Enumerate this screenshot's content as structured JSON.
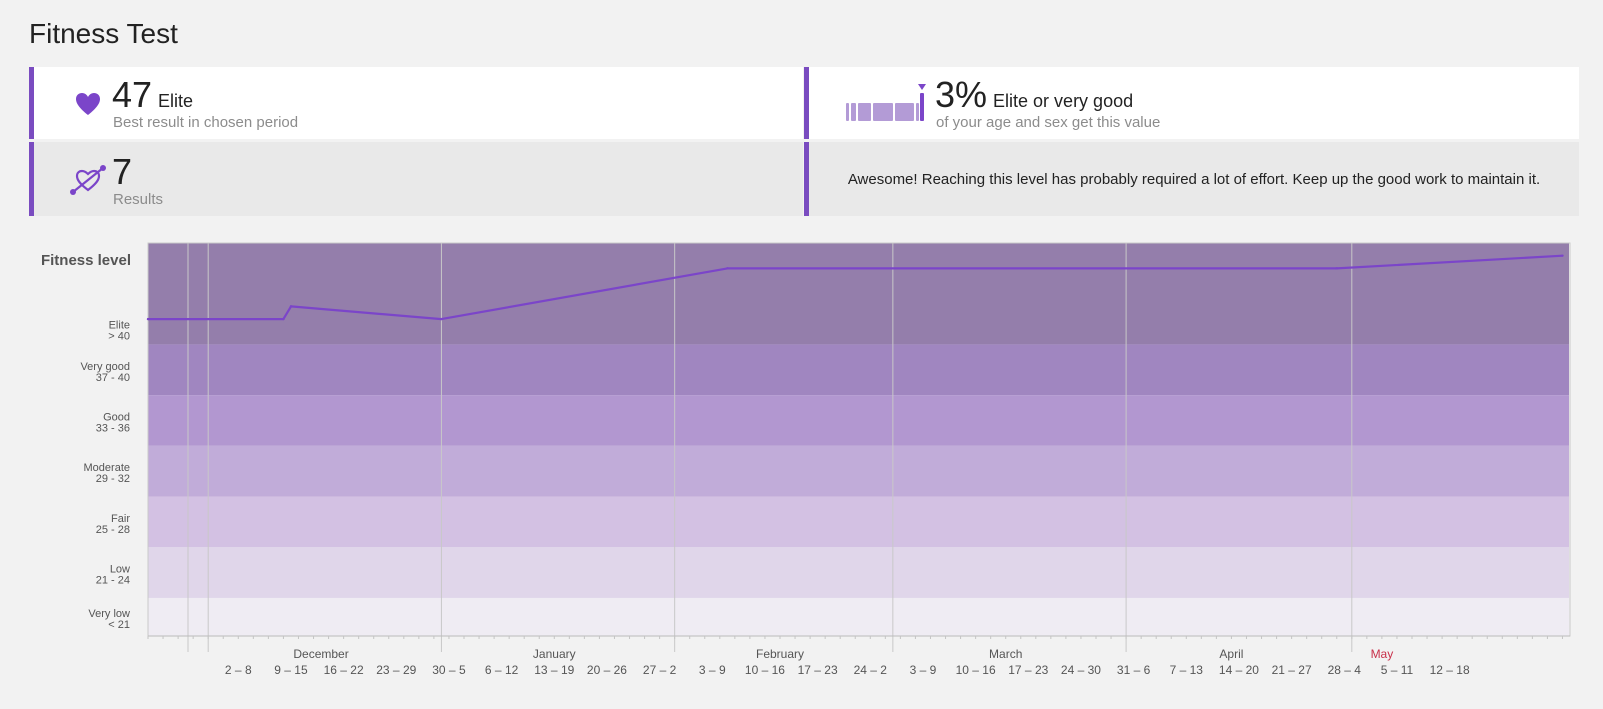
{
  "page_title": "Fitness Test",
  "cards": {
    "best": {
      "value": "47",
      "level": "Elite",
      "caption": "Best result in chosen period"
    },
    "percentile": {
      "value": "3%",
      "level": "Elite or very good",
      "caption": "of your age and sex get this value"
    },
    "results": {
      "value": "7",
      "caption": "Results"
    },
    "message": "Awesome! Reaching this level has probably required a lot of effort. Keep up the good work to maintain it."
  },
  "colors": {
    "accent": "#7a4cc0",
    "line": "#7b45c9",
    "current_month": "#c8304a"
  },
  "chart_data": {
    "type": "line",
    "ylabel": "Fitness level",
    "ylim": [
      17,
      48
    ],
    "bands": [
      {
        "name": "Elite",
        "range": "> 40",
        "min": 40,
        "max": 48,
        "color": "#947eab"
      },
      {
        "name": "Very good",
        "range": "37 - 40",
        "min": 36,
        "max": 40,
        "color": "#a086c0"
      },
      {
        "name": "Good",
        "range": "33 - 36",
        "min": 32,
        "max": 36,
        "color": "#b297d0"
      },
      {
        "name": "Moderate",
        "range": "29 - 32",
        "min": 28,
        "max": 32,
        "color": "#c1acd9"
      },
      {
        "name": "Fair",
        "range": "25 - 28",
        "min": 24,
        "max": 28,
        "color": "#d3c1e3"
      },
      {
        "name": "Low",
        "range": "21 - 24",
        "min": 20,
        "max": 24,
        "color": "#e0d6ea"
      },
      {
        "name": "Very low",
        "range": "< 21",
        "min": 17,
        "max": 20,
        "color": "#efecf3"
      }
    ],
    "points": [
      {
        "x": "2019-11-23",
        "y": 42
      },
      {
        "x": "2019-12-11",
        "y": 42
      },
      {
        "x": "2019-12-12",
        "y": 43
      },
      {
        "x": "2020-01-01",
        "y": 42
      },
      {
        "x": "2020-02-08",
        "y": 46
      },
      {
        "x": "2020-04-29",
        "y": 46
      },
      {
        "x": "2020-05-29",
        "y": 47
      }
    ],
    "x_range": [
      "2019-11-23",
      "2020-05-30"
    ],
    "months": [
      {
        "label": "December",
        "boundary": "2019-12-01",
        "center": "2019-12-16"
      },
      {
        "label": "January",
        "boundary": "2020-01-01",
        "center": "2020-01-16"
      },
      {
        "label": "February",
        "boundary": "2020-02-01",
        "center": "2020-02-15"
      },
      {
        "label": "March",
        "boundary": "2020-03-01",
        "center": "2020-03-16"
      },
      {
        "label": "April",
        "boundary": "2020-04-01",
        "center": "2020-04-15"
      },
      {
        "label": "May",
        "boundary": "2020-05-01",
        "center": "2020-05-05",
        "current": true
      }
    ],
    "weeks": [
      {
        "label": "2 – 8",
        "center": "2019-12-05"
      },
      {
        "label": "9 – 15",
        "center": "2019-12-12"
      },
      {
        "label": "16 – 22",
        "center": "2019-12-19"
      },
      {
        "label": "23 – 29",
        "center": "2019-12-26"
      },
      {
        "label": "30 – 5",
        "center": "2020-01-02"
      },
      {
        "label": "6 – 12",
        "center": "2020-01-09"
      },
      {
        "label": "13 – 19",
        "center": "2020-01-16"
      },
      {
        "label": "20 – 26",
        "center": "2020-01-23"
      },
      {
        "label": "27 – 2",
        "center": "2020-01-30"
      },
      {
        "label": "3 – 9",
        "center": "2020-02-06"
      },
      {
        "label": "10 – 16",
        "center": "2020-02-13"
      },
      {
        "label": "17 – 23",
        "center": "2020-02-20"
      },
      {
        "label": "24 – 2",
        "center": "2020-02-27"
      },
      {
        "label": "3 – 9",
        "center": "2020-03-05"
      },
      {
        "label": "10 – 16",
        "center": "2020-03-12"
      },
      {
        "label": "17 – 23",
        "center": "2020-03-19"
      },
      {
        "label": "24 – 30",
        "center": "2020-03-26"
      },
      {
        "label": "31 – 6",
        "center": "2020-04-02"
      },
      {
        "label": "7 – 13",
        "center": "2020-04-09"
      },
      {
        "label": "14 – 20",
        "center": "2020-04-16"
      },
      {
        "label": "21 – 27",
        "center": "2020-04-23"
      },
      {
        "label": "28 – 4",
        "center": "2020-04-30"
      },
      {
        "label": "5 – 11",
        "center": "2020-05-07"
      },
      {
        "label": "12 – 18",
        "center": "2020-05-14"
      }
    ]
  }
}
